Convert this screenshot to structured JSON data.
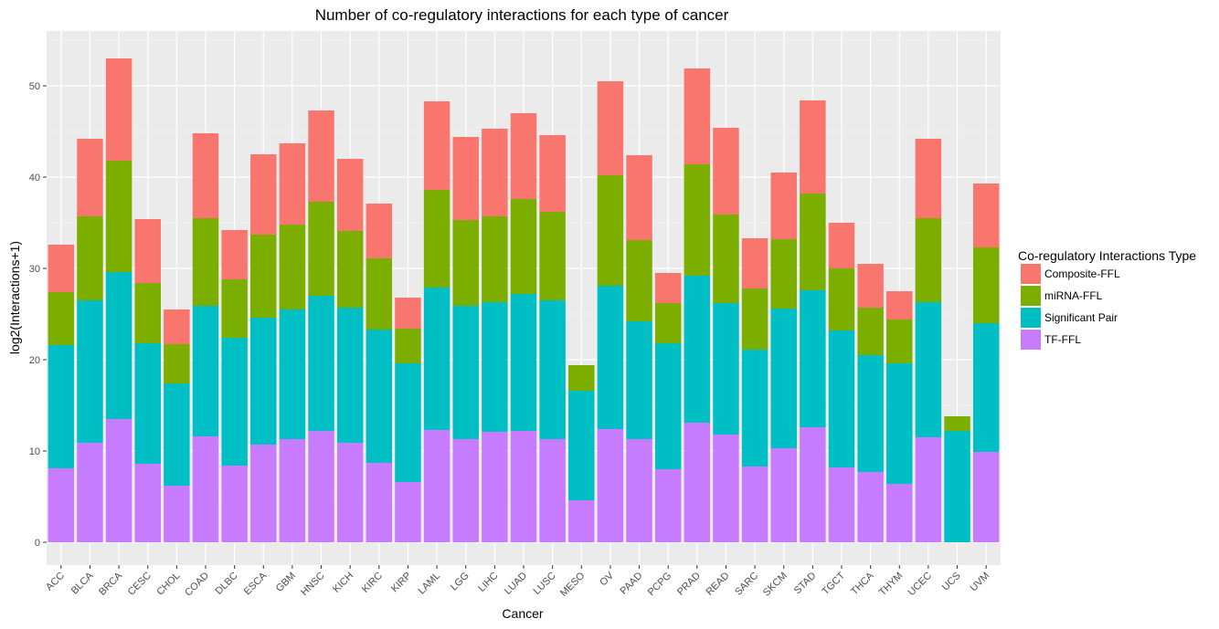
{
  "chart_data": {
    "type": "bar",
    "stacked": true,
    "title": "Number of co-regulatory interactions for each type of cancer",
    "xlabel": "Cancer",
    "ylabel": "log2(Interactions+1)",
    "ylim": [
      -2.5,
      56
    ],
    "yticks": [
      0,
      10,
      20,
      30,
      40,
      50
    ],
    "grid": true,
    "legend": {
      "title": "Co-regulatory Interactions Type",
      "position": "right",
      "order": [
        "Composite-FFL",
        "miRNA-FFL",
        "Significant Pair",
        "TF-FFL"
      ]
    },
    "colors": {
      "Composite-FFL": "#F8766D",
      "miRNA-FFL": "#7CAE00",
      "Significant Pair": "#00BFC4",
      "TF-FFL": "#C77CFF"
    },
    "stack_order_bottom_to_top": [
      "TF-FFL",
      "Significant Pair",
      "miRNA-FFL",
      "Composite-FFL"
    ],
    "categories": [
      "ACC",
      "BLCA",
      "BRCA",
      "CESC",
      "CHOL",
      "COAD",
      "DLBC",
      "ESCA",
      "GBM",
      "HNSC",
      "KICH",
      "KIRC",
      "KIRP",
      "LAML",
      "LGG",
      "LIHC",
      "LUAD",
      "LUSC",
      "MESO",
      "OV",
      "PAAD",
      "PCPG",
      "PRAD",
      "READ",
      "SARC",
      "SKCM",
      "STAD",
      "TGCT",
      "THCA",
      "THYM",
      "UCEC",
      "UCS",
      "UVM"
    ],
    "series": [
      {
        "name": "TF-FFL",
        "values": [
          8.1,
          10.9,
          13.5,
          8.6,
          6.2,
          11.6,
          8.4,
          10.7,
          11.3,
          12.2,
          10.9,
          8.7,
          6.6,
          12.3,
          11.3,
          12.1,
          12.2,
          11.3,
          4.6,
          12.4,
          11.3,
          8.0,
          13.1,
          11.8,
          8.3,
          10.3,
          12.6,
          8.2,
          7.7,
          6.4,
          11.5,
          0.0,
          9.9
        ]
      },
      {
        "name": "Significant Pair",
        "values": [
          13.5,
          15.6,
          16.1,
          13.2,
          11.2,
          14.3,
          14.0,
          13.9,
          14.2,
          14.8,
          14.8,
          14.6,
          13.0,
          15.6,
          14.6,
          14.2,
          15.0,
          15.2,
          12.0,
          15.7,
          12.9,
          13.8,
          16.1,
          14.4,
          12.8,
          15.3,
          15.0,
          15.0,
          12.8,
          13.2,
          14.8,
          12.2,
          14.1
        ]
      },
      {
        "name": "miRNA-FFL",
        "values": [
          5.8,
          9.2,
          12.2,
          6.6,
          4.3,
          9.6,
          6.4,
          9.1,
          9.3,
          10.3,
          8.4,
          7.8,
          3.8,
          10.7,
          9.4,
          9.4,
          10.4,
          9.7,
          2.8,
          12.1,
          8.9,
          4.4,
          12.2,
          9.7,
          6.7,
          7.6,
          10.6,
          6.8,
          5.2,
          4.8,
          9.2,
          1.6,
          8.3
        ]
      },
      {
        "name": "Composite-FFL",
        "values": [
          5.2,
          8.5,
          11.2,
          7.0,
          3.8,
          9.3,
          5.4,
          8.8,
          8.9,
          10.0,
          7.9,
          6.0,
          3.4,
          9.7,
          9.1,
          9.6,
          9.4,
          8.4,
          0.0,
          10.3,
          9.3,
          3.3,
          10.5,
          9.5,
          5.5,
          7.3,
          10.2,
          5.0,
          4.8,
          3.1,
          8.7,
          0.0,
          7.0
        ]
      }
    ]
  }
}
